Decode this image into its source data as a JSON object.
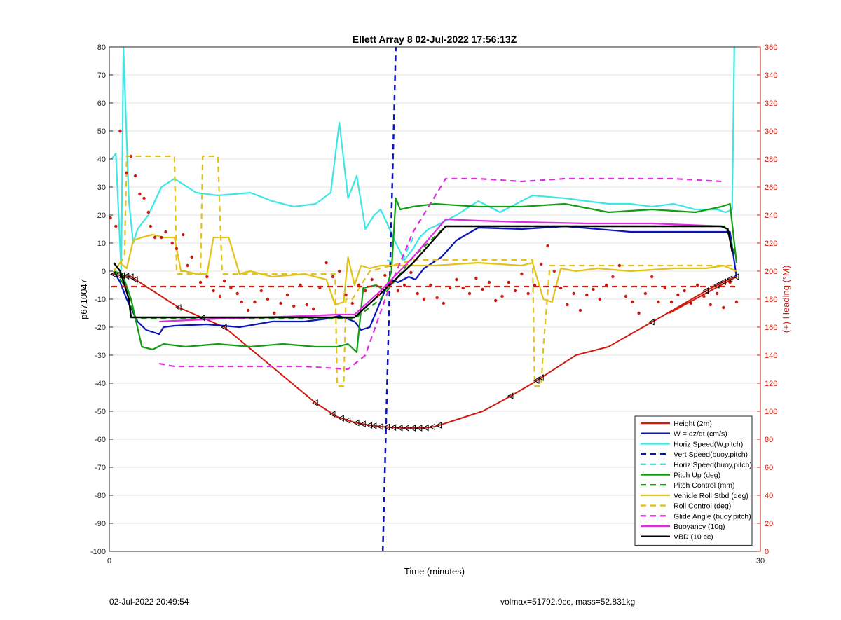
{
  "footer": {
    "timestamp": "02-Jul-2022 20:49:54",
    "info": "volmax=51792.9cc, mass=52.831kg"
  },
  "chart_data": {
    "type": "line",
    "title": "Ellett Array 8 02-Jul-2022 17:56:13Z",
    "xlabel": "Time (minutes)",
    "ylabel": "p6710047",
    "y2label": "(+) Heading (°M)",
    "xlim": [
      0,
      30
    ],
    "ylim": [
      -100,
      80
    ],
    "y2lim": [
      0,
      360
    ],
    "xticks": [
      "0",
      "30"
    ],
    "yticks": [
      "80",
      "70",
      "60",
      "50",
      "40",
      "30",
      "20",
      "10",
      "0",
      "-10",
      "-20",
      "-30",
      "-40",
      "-50",
      "-60",
      "-70",
      "-80",
      "-90",
      "-100"
    ],
    "y2ticks": [
      "360",
      "340",
      "320",
      "300",
      "280",
      "260",
      "240",
      "220",
      "200",
      "180",
      "160",
      "140",
      "120",
      "100",
      "80",
      "60",
      "40",
      "20",
      "0"
    ],
    "grid": true,
    "legend_position": "bottom-right",
    "colors": {
      "red": "#d01c10",
      "blue": "#0a14b8",
      "cyan": "#3ee6e6",
      "green": "#129e12",
      "yellow": "#e3c21a",
      "magenta": "#e02be0",
      "black": "#000000",
      "axis_right": "#d01c10"
    },
    "series": [
      {
        "name": "Height (2m)",
        "color": "#d01c10",
        "style": "solid",
        "width": 2,
        "axis": "left",
        "x": [
          0.1,
          1.0,
          3.2,
          5.3,
          9.5,
          10.5,
          11.3,
          12.0,
          12.5,
          13.5,
          14.5,
          15.0,
          16.0,
          17.2,
          18.4,
          19.5,
          21.5,
          23.0,
          25.5,
          27.5,
          28.5,
          28.9,
          25.8
        ],
        "y": [
          -1,
          -2,
          -13,
          -20,
          -47,
          -52,
          -54,
          -55,
          -55.5,
          -56,
          -56,
          -55.5,
          -53,
          -50,
          -45,
          -40,
          -30,
          -27,
          -16,
          -7,
          -3,
          -2,
          -15
        ]
      },
      {
        "name": "W = dz/dt (cm/s)",
        "color": "#0a14b8",
        "style": "solid",
        "width": 2.2,
        "axis": "left",
        "x": [
          0.2,
          0.5,
          0.8,
          1.3,
          1.7,
          2.3,
          2.5,
          3.0,
          4.5,
          6.0,
          7.5,
          9.0,
          10.0,
          10.6,
          11.3,
          11.6,
          12.0,
          12.7,
          13.0,
          13.3,
          13.8,
          14.1,
          14.5,
          15.3,
          16.0,
          17.0,
          19.0,
          21.0,
          24.0,
          26.0,
          28.0,
          28.6,
          28.9
        ],
        "y": [
          0,
          -4,
          -10,
          -18,
          -21,
          -22.5,
          -20,
          -19.5,
          -19,
          -20,
          -18,
          -18,
          -17,
          -16,
          -18,
          -21,
          -20,
          -7,
          -3,
          -4,
          -2,
          -3,
          1,
          5,
          11,
          15.5,
          15,
          16,
          14,
          14,
          14,
          14,
          -2
        ]
      },
      {
        "name": "Horiz Speed(W,pitch)",
        "color": "#3ee6e6",
        "style": "solid",
        "width": 2.2,
        "axis": "left",
        "x": [
          0.1,
          0.3,
          0.55,
          0.65,
          0.9,
          1.1,
          1.3,
          1.8,
          2.4,
          3.0,
          4.0,
          5.0,
          6.5,
          7.5,
          8.5,
          9.5,
          10.2,
          10.6,
          11.0,
          11.4,
          11.8,
          12.2,
          12.5,
          12.8,
          13.2,
          13.6,
          14.0,
          14.3,
          14.7,
          15.0,
          16.0,
          17.0,
          18.0,
          19.5,
          21.0,
          22.0,
          23.0,
          24.0,
          25.0,
          26.0,
          27.0,
          28.0,
          28.4,
          28.7,
          28.8
        ],
        "y": [
          40,
          42,
          0,
          80,
          25,
          10,
          15,
          20,
          30,
          33,
          28,
          27,
          28,
          25,
          23,
          24,
          28,
          53,
          26,
          34,
          15,
          20,
          22,
          17,
          10,
          4,
          8,
          12,
          15,
          16,
          20,
          25,
          21,
          27,
          26,
          25,
          24,
          24,
          23,
          24,
          22,
          22,
          21,
          22,
          80
        ]
      },
      {
        "name": "Vert Speed(buoy,pitch)",
        "color": "#0a14b8",
        "style": "dashed",
        "width": 2.5,
        "axis": "left",
        "x": [
          12.6,
          13.2
        ],
        "y": [
          -100,
          80
        ]
      },
      {
        "name": "Horiz Speed(buoy,pitch)",
        "color": "#3ee6e6",
        "style": "dashed",
        "width": 2.2,
        "axis": "left",
        "x": [
          12.8,
          13.4,
          14.0
        ],
        "y": [
          4,
          2,
          12
        ]
      },
      {
        "name": "Pitch Up (deg)",
        "color": "#129e12",
        "style": "solid",
        "width": 2.2,
        "axis": "left",
        "x": [
          0.2,
          0.6,
          1.0,
          1.5,
          2.0,
          2.5,
          3.5,
          5.0,
          6.5,
          8.0,
          9.5,
          10.5,
          11.0,
          11.4,
          11.7,
          12.3,
          12.7,
          12.8,
          13.0,
          13.2,
          13.4,
          14.0,
          15.0,
          17.0,
          19.0,
          21.0,
          23.0,
          25.0,
          27.0,
          28.2,
          28.6,
          28.9
        ],
        "y": [
          0,
          -1,
          -10,
          -27,
          -28,
          -26,
          -27,
          -26,
          -27,
          -26,
          -27,
          -27,
          -26,
          -29,
          -6,
          -5,
          -7,
          -5,
          0,
          26,
          22,
          23,
          24,
          23,
          23,
          24,
          21,
          22,
          21,
          23,
          24,
          3
        ]
      },
      {
        "name": "Pitch Control (mm)",
        "color": "#129e12",
        "style": "dashed",
        "width": 2.2,
        "axis": "left",
        "x": [
          0.2,
          0.7,
          1.2,
          2.0,
          10.5,
          11.3,
          12.5,
          14.0,
          15.5,
          17.0,
          28.4,
          28.9
        ],
        "y": [
          0,
          -5,
          -17,
          -17,
          -17,
          -17,
          -10,
          5,
          16,
          16,
          16,
          5
        ]
      },
      {
        "name": "Vehicle Roll Stbd (deg)",
        "color": "#e3c21a",
        "style": "solid",
        "width": 2.2,
        "axis": "left",
        "x": [
          0.2,
          0.5,
          0.8,
          1.1,
          1.5,
          2.0,
          2.5,
          3.0,
          3.3,
          3.5,
          4.0,
          4.5,
          4.8,
          5.0,
          5.5,
          6.0,
          6.5,
          7.5,
          9.0,
          10.0,
          10.4,
          10.8,
          11.0,
          11.3,
          11.6,
          12.0,
          12.5,
          13.0,
          15.0,
          17.0,
          19.0,
          19.5,
          20.0,
          20.4,
          20.8,
          21.5,
          22.5,
          24.0,
          26.0,
          27.5,
          28.3,
          28.9
        ],
        "y": [
          0,
          3,
          1,
          11,
          12,
          13,
          12,
          12,
          0,
          0,
          -1,
          -1,
          12,
          12,
          12,
          -1,
          0,
          -2,
          -1,
          -3,
          -12,
          -11,
          5,
          -5,
          2,
          1,
          2,
          2,
          2,
          3,
          2,
          3,
          -10,
          -11,
          1,
          0,
          1,
          0,
          1,
          1,
          2,
          0
        ]
      },
      {
        "name": "Roll Control (deg)",
        "color": "#e3c21a",
        "style": "dashed",
        "width": 2.2,
        "axis": "left",
        "x": [
          0.2,
          0.7,
          0.8,
          0.9,
          1.5,
          2.5,
          3.0,
          3.1,
          4.2,
          4.3,
          5.0,
          5.2,
          10.4,
          10.5,
          10.8,
          10.9,
          11.2,
          12.0,
          14.0,
          19.5,
          19.6,
          19.9,
          20.0,
          20.3,
          28.9
        ],
        "y": [
          0,
          5,
          41,
          41,
          41,
          41,
          41,
          -1,
          -1,
          41,
          41,
          -1,
          -1,
          -41,
          -41,
          -10,
          -10,
          0,
          4,
          4,
          -41,
          -41,
          -27,
          2,
          2
        ]
      },
      {
        "name": "Glide Angle (buoy,pitch)",
        "color": "#e02be0",
        "style": "dashed",
        "width": 2.2,
        "axis": "left",
        "x": [
          2.3,
          3.0,
          5.0,
          7.0,
          9.0,
          11.0,
          11.8,
          12.8,
          14.0,
          15.5,
          17.0,
          19.0,
          21.0,
          22.5,
          24.0,
          26.0,
          28.2
        ],
        "y": [
          -33,
          -34,
          -34,
          -34,
          -34,
          -35,
          -30,
          -8,
          14,
          33,
          33,
          32,
          33,
          33,
          33,
          33,
          32
        ]
      },
      {
        "name": "Buoyancy (10g)",
        "color": "#e02be0",
        "style": "solid",
        "width": 2.2,
        "axis": "left",
        "x": [
          2.3,
          5.0,
          9.0,
          10.5,
          11.3,
          12.5,
          14.0,
          15.5,
          17.0,
          19.0,
          22.0,
          25.0,
          28.2
        ],
        "y": [
          -18,
          -17,
          -16,
          -15.5,
          -15.5,
          -7,
          5,
          18.5,
          18,
          17.5,
          17,
          17,
          16
        ]
      },
      {
        "name": "VBD (10 cc)",
        "color": "#000000",
        "style": "solid",
        "width": 2.4,
        "axis": "left",
        "x": [
          0.2,
          0.5,
          0.9,
          1.0,
          2.0,
          5.0,
          8.0,
          10.5,
          11.3,
          12.5,
          14.0,
          15.5,
          17.0,
          20.0,
          24.0,
          28.2,
          28.5,
          28.7
        ],
        "y": [
          3,
          0,
          -10,
          -16.5,
          -16.5,
          -16.5,
          -16.5,
          -16.5,
          -16.5,
          -8,
          3,
          16,
          16,
          16,
          16,
          16,
          15,
          7
        ]
      },
      {
        "name": "",
        "color": "#d01c10",
        "style": "dashed",
        "width": 2.2,
        "axis": "left",
        "x": [
          0.1,
          28.9
        ],
        "y": [
          -5.5,
          -5.5
        ]
      }
    ],
    "heading_dots": {
      "color": "#d01c10",
      "axis": "right",
      "x": [
        0.05,
        0.3,
        0.5,
        0.8,
        1.0,
        1.2,
        1.4,
        1.6,
        1.8,
        1.9,
        2.1,
        2.4,
        2.6,
        2.9,
        3.1,
        3.4,
        3.6,
        3.8,
        4.2,
        4.5,
        4.8,
        5.1,
        5.3,
        5.6,
        5.9,
        6.1,
        6.4,
        6.7,
        7.0,
        7.3,
        7.6,
        7.9,
        8.2,
        8.5,
        8.8,
        9.1,
        9.4,
        9.7,
        10.0,
        10.3,
        10.6,
        10.9,
        11.2,
        11.5,
        11.8,
        12.1,
        12.4,
        12.7,
        13.0,
        13.3,
        13.6,
        13.9,
        14.2,
        14.5,
        14.8,
        15.1,
        15.4,
        15.7,
        16.0,
        16.3,
        16.6,
        16.9,
        17.2,
        17.5,
        17.8,
        18.1,
        18.4,
        18.7,
        19.0,
        19.3,
        19.6,
        19.9,
        20.2,
        20.5,
        20.8,
        21.1,
        21.4,
        21.7,
        22.0,
        22.3,
        22.6,
        22.9,
        23.2,
        23.5,
        23.8,
        24.1,
        24.4,
        24.7,
        25.0,
        25.3,
        25.6,
        25.9,
        26.2,
        26.5,
        26.8,
        27.1,
        27.4,
        27.7,
        28.0,
        28.3,
        28.6,
        28.9
      ],
      "y": [
        238,
        232,
        300,
        270,
        282,
        268,
        255,
        252,
        242,
        232,
        224,
        224,
        228,
        220,
        216,
        226,
        204,
        210,
        192,
        196,
        186,
        182,
        193,
        188,
        184,
        178,
        172,
        178,
        186,
        180,
        170,
        177,
        183,
        175,
        190,
        176,
        173,
        188,
        206,
        196,
        200,
        183,
        177,
        190,
        186,
        194,
        183,
        197,
        192,
        186,
        190,
        199,
        184,
        180,
        190,
        181,
        177,
        188,
        194,
        188,
        184,
        195,
        187,
        192,
        179,
        182,
        192,
        186,
        198,
        184,
        190,
        205,
        218,
        200,
        188,
        176,
        184,
        172,
        183,
        187,
        180,
        190,
        196,
        204,
        182,
        178,
        170,
        184,
        196,
        178,
        188,
        178,
        183,
        186,
        177,
        190,
        182,
        176,
        184,
        174,
        192,
        178
      ]
    }
  }
}
